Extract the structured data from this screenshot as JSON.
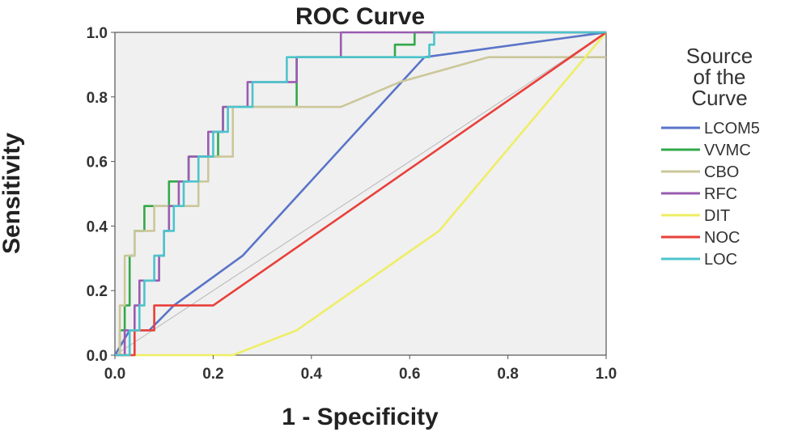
{
  "chart_data": {
    "type": "line",
    "title": "ROC Curve",
    "xlabel": "1 - Specificity",
    "ylabel": "Sensitivity",
    "xlim": [
      0,
      1
    ],
    "ylim": [
      0,
      1
    ],
    "x_ticks": [
      "0.0",
      "0.2",
      "0.4",
      "0.6",
      "0.8",
      "1.0"
    ],
    "y_ticks": [
      "0.0",
      "0.2",
      "0.4",
      "0.6",
      "0.8",
      "1.0"
    ],
    "grid": false,
    "legend": {
      "title_lines": [
        "Source",
        "of the",
        "Curve"
      ],
      "placement": "right"
    },
    "reference_line": {
      "x": [
        0,
        1
      ],
      "y": [
        0,
        1
      ]
    },
    "series": [
      {
        "name": "LCOM5",
        "color": "#5a74c8",
        "x": [
          0,
          0.03,
          0.07,
          0.12,
          0.26,
          0.63,
          1.0
        ],
        "y": [
          0,
          0.077,
          0.077,
          0.154,
          0.308,
          0.923,
          1.0
        ]
      },
      {
        "name": "VVMC",
        "color": "#33a84a",
        "x": [
          0,
          0.01,
          0.01,
          0.02,
          0.02,
          0.03,
          0.03,
          0.04,
          0.04,
          0.06,
          0.06,
          0.08,
          0.08,
          0.11,
          0.11,
          0.13,
          0.13,
          0.15,
          0.15,
          0.18,
          0.18,
          0.21,
          0.21,
          0.22,
          0.22,
          0.3,
          0.3,
          0.32,
          0.32,
          0.37,
          0.37,
          0.57,
          0.57,
          0.61,
          0.61,
          1.0
        ],
        "y": [
          0,
          0,
          0.077,
          0.077,
          0.154,
          0.154,
          0.308,
          0.308,
          0.385,
          0.385,
          0.462,
          0.462,
          0.462,
          0.462,
          0.538,
          0.538,
          0.538,
          0.538,
          0.615,
          0.615,
          0.615,
          0.615,
          0.692,
          0.692,
          0.769,
          0.769,
          0.769,
          0.769,
          0.769,
          0.769,
          0.923,
          0.923,
          0.962,
          0.962,
          1.0,
          1.0
        ]
      },
      {
        "name": "CBO",
        "color": "#cbc79a",
        "x": [
          0,
          0.01,
          0.01,
          0.02,
          0.02,
          0.04,
          0.04,
          0.08,
          0.08,
          0.13,
          0.13,
          0.17,
          0.17,
          0.19,
          0.19,
          0.24,
          0.24,
          0.46,
          0.58,
          0.76,
          1.0
        ],
        "y": [
          0,
          0,
          0.154,
          0.154,
          0.308,
          0.308,
          0.385,
          0.385,
          0.462,
          0.462,
          0.462,
          0.462,
          0.538,
          0.538,
          0.615,
          0.615,
          0.769,
          0.769,
          0.846,
          0.923,
          0.923
        ]
      },
      {
        "name": "RFC",
        "color": "#9a5bb1",
        "x": [
          0,
          0.02,
          0.02,
          0.04,
          0.04,
          0.05,
          0.05,
          0.07,
          0.07,
          0.09,
          0.09,
          0.1,
          0.1,
          0.11,
          0.11,
          0.13,
          0.13,
          0.15,
          0.15,
          0.17,
          0.17,
          0.19,
          0.19,
          0.22,
          0.22,
          0.27,
          0.27,
          0.31,
          0.31,
          0.37,
          0.37,
          0.46,
          0.46,
          1.0
        ],
        "y": [
          0,
          0,
          0.077,
          0.077,
          0.154,
          0.154,
          0.231,
          0.231,
          0.231,
          0.231,
          0.308,
          0.308,
          0.385,
          0.385,
          0.462,
          0.462,
          0.538,
          0.538,
          0.615,
          0.615,
          0.615,
          0.615,
          0.692,
          0.692,
          0.769,
          0.769,
          0.846,
          0.846,
          0.846,
          0.846,
          0.923,
          0.923,
          1.0,
          1.0
        ]
      },
      {
        "name": "DIT",
        "color": "#eeee66",
        "x": [
          0,
          0.24,
          0.37,
          0.66,
          1.0
        ],
        "y": [
          0,
          0,
          0.077,
          0.385,
          1.0
        ]
      },
      {
        "name": "NOC",
        "color": "#e8403a",
        "x": [
          0,
          0.04,
          0.04,
          0.08,
          0.08,
          0.2,
          1.0
        ],
        "y": [
          0,
          0,
          0.077,
          0.077,
          0.154,
          0.154,
          1.0
        ]
      },
      {
        "name": "LOC",
        "color": "#4cc4cc",
        "x": [
          0,
          0.03,
          0.03,
          0.05,
          0.05,
          0.06,
          0.06,
          0.08,
          0.08,
          0.1,
          0.1,
          0.12,
          0.12,
          0.14,
          0.14,
          0.17,
          0.17,
          0.2,
          0.2,
          0.23,
          0.23,
          0.28,
          0.28,
          0.33,
          0.33,
          0.35,
          0.35,
          0.39,
          0.39,
          0.64,
          0.64,
          0.65,
          0.65,
          1.0
        ],
        "y": [
          0,
          0,
          0.077,
          0.077,
          0.154,
          0.154,
          0.231,
          0.231,
          0.308,
          0.308,
          0.385,
          0.385,
          0.462,
          0.462,
          0.538,
          0.538,
          0.615,
          0.615,
          0.692,
          0.692,
          0.769,
          0.769,
          0.846,
          0.846,
          0.846,
          0.846,
          0.923,
          0.923,
          0.923,
          0.923,
          0.962,
          0.962,
          1.0,
          1.0
        ]
      }
    ]
  }
}
